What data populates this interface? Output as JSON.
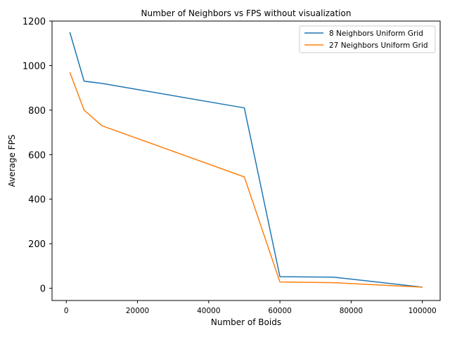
{
  "chart_data": {
    "type": "line",
    "title": "Number of Neighbors vs FPS without visualization",
    "xlabel": "Number of Boids",
    "ylabel": "Average FPS",
    "xlim": [
      -4000,
      105000
    ],
    "ylim": [
      -55,
      1200
    ],
    "xticks": [
      0,
      20000,
      40000,
      60000,
      80000,
      100000
    ],
    "xtick_labels": [
      "0",
      "20000",
      "40000",
      "60000",
      "80000",
      "100000"
    ],
    "yticks": [
      0,
      200,
      400,
      600,
      800,
      1000,
      1200
    ],
    "ytick_labels": [
      "0",
      "200",
      "400",
      "600",
      "800",
      "1000",
      "1200"
    ],
    "grid": false,
    "legend": "top-right",
    "x": [
      1000,
      5000,
      10000,
      50000,
      60000,
      75000,
      100000
    ],
    "series": [
      {
        "name": "8 Neighbors Uniform Grid",
        "color": "#1f77b4",
        "values": [
          1150,
          930,
          920,
          810,
          52,
          50,
          5
        ]
      },
      {
        "name": "27 Neighbors Uniform Grid",
        "color": "#ff7f0e",
        "values": [
          970,
          800,
          730,
          500,
          28,
          25,
          5
        ]
      }
    ]
  }
}
